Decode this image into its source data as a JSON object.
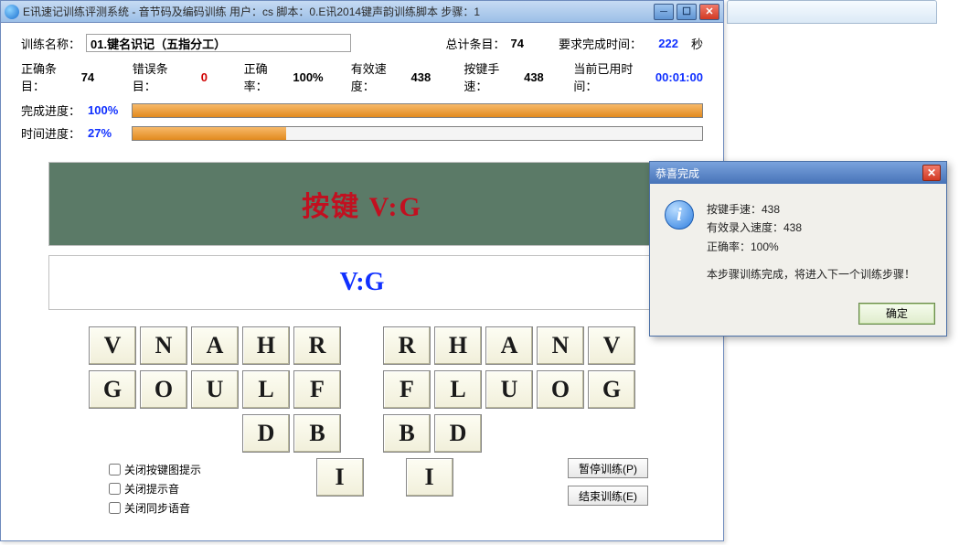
{
  "bg_tab": "",
  "main": {
    "title": "E讯速记训练评测系统 - 音节码及编码训练  用户：cs  脚本：0.E讯2014键声韵训练脚本  步骤：1",
    "row1": {
      "name_label": "训练名称：",
      "name_value": "01.键名识记（五指分工）",
      "total_label": "总计条目：",
      "total_value": "74",
      "reqtime_label": "要求完成时间：",
      "reqtime_value": "222",
      "sec": "秒"
    },
    "row2": {
      "correct_label": "正确条目：",
      "correct_value": "74",
      "error_label": "错误条目：",
      "error_value": "0",
      "rate_label": "正确率：",
      "rate_value": "100%",
      "speed_label": "有效速度：",
      "speed_value": "438",
      "keyspeed_label": "按键手速：",
      "keyspeed_value": "438",
      "elapsed_label": "当前已用时间：",
      "elapsed_value": "00:01:00"
    },
    "progress1": {
      "label": "完成进度：",
      "pct_text": "100%",
      "pct": 100
    },
    "progress2": {
      "label": "时间进度：",
      "pct_text": "27%",
      "pct": 27
    },
    "prompt_top": "按键  V:G",
    "prompt_bottom": "V:G",
    "keyboard": {
      "r1_left": [
        "V",
        "N",
        "A",
        "H",
        "R"
      ],
      "r1_right": [
        "R",
        "H",
        "A",
        "N",
        "V"
      ],
      "r2_left": [
        "G",
        "O",
        "U",
        "L",
        "F"
      ],
      "r2_right": [
        "F",
        "L",
        "U",
        "O",
        "G"
      ],
      "r3_left": [
        "D",
        "B"
      ],
      "r3_right": [
        "B",
        "D"
      ],
      "r4_left": [
        "I"
      ],
      "r4_right": [
        "I"
      ]
    },
    "checks": {
      "c1": "关闭按键图提示",
      "c2": "关闭提示音",
      "c3": "关闭同步语音"
    },
    "side": {
      "pause": "暂停训练(P)",
      "end": "结束训练(E)"
    }
  },
  "dialog": {
    "title": "恭喜完成",
    "line1": "按键手速：438",
    "line2": "有效录入速度：438",
    "line3": "正确率：100%",
    "line4": "本步骤训练完成，将进入下一个训练步骤！",
    "ok": "确定"
  }
}
